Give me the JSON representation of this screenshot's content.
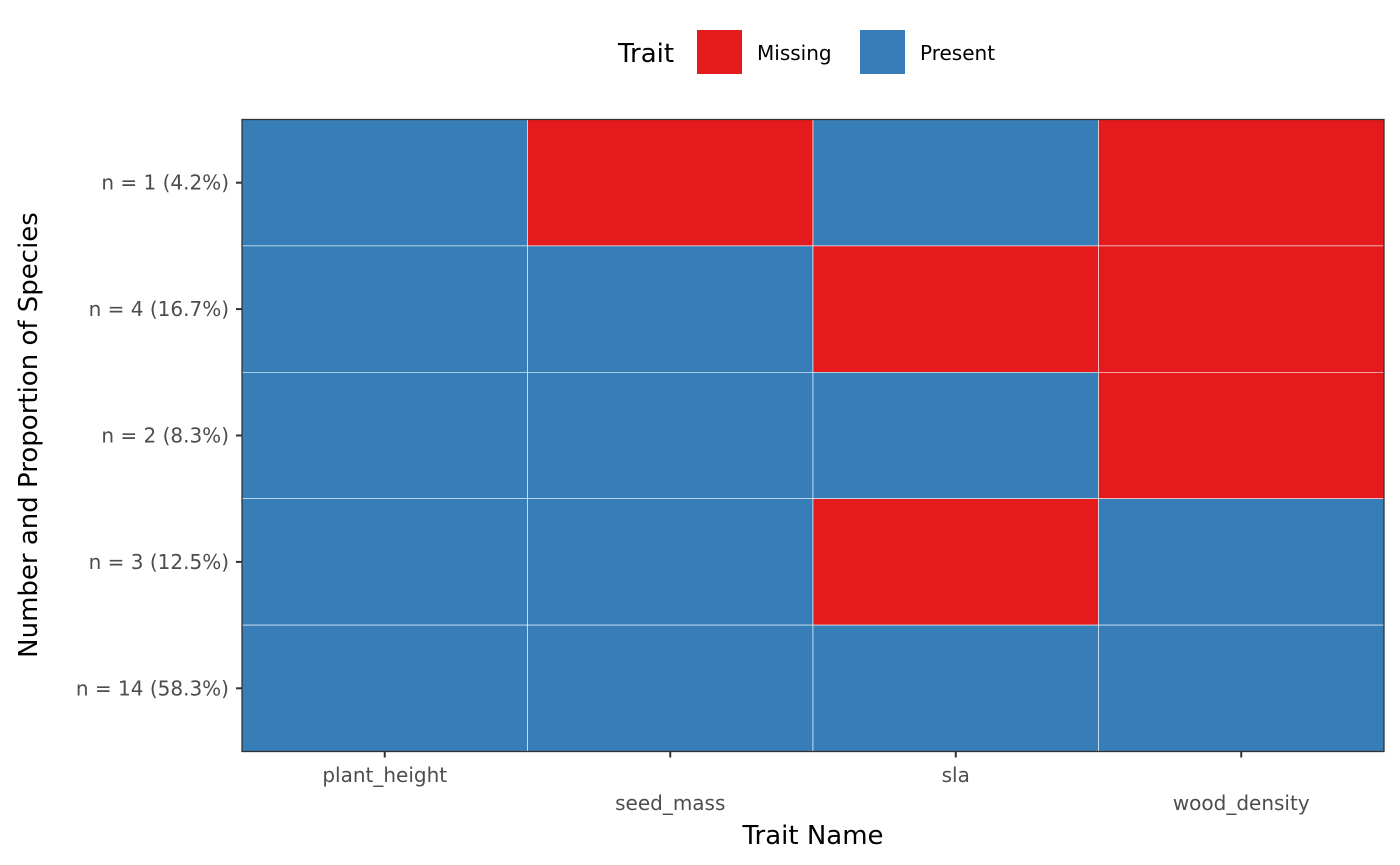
{
  "chart_data": {
    "type": "heatmap",
    "xlabel": "Trait Name",
    "ylabel": "Number and Proportion of Species",
    "x_categories": [
      "plant_height",
      "seed_mass",
      "sla",
      "wood_density"
    ],
    "y_categories": [
      "n = 1 (4.2%)",
      "n = 4 (16.7%)",
      "n = 2 (8.3%)",
      "n = 3 (12.5%)",
      "n = 14 (58.3%)"
    ],
    "cells": [
      [
        "Present",
        "Missing",
        "Present",
        "Missing"
      ],
      [
        "Present",
        "Present",
        "Missing",
        "Missing"
      ],
      [
        "Present",
        "Present",
        "Present",
        "Missing"
      ],
      [
        "Present",
        "Present",
        "Missing",
        "Present"
      ],
      [
        "Present",
        "Present",
        "Present",
        "Present"
      ]
    ],
    "legend": {
      "title": "Trait",
      "position": "top",
      "entries": [
        {
          "label": "Missing",
          "color": "#E41A1C"
        },
        {
          "label": "Present",
          "color": "#377EB8"
        }
      ]
    },
    "x_tick_dodge": true,
    "panel_border": true,
    "grid": false
  }
}
